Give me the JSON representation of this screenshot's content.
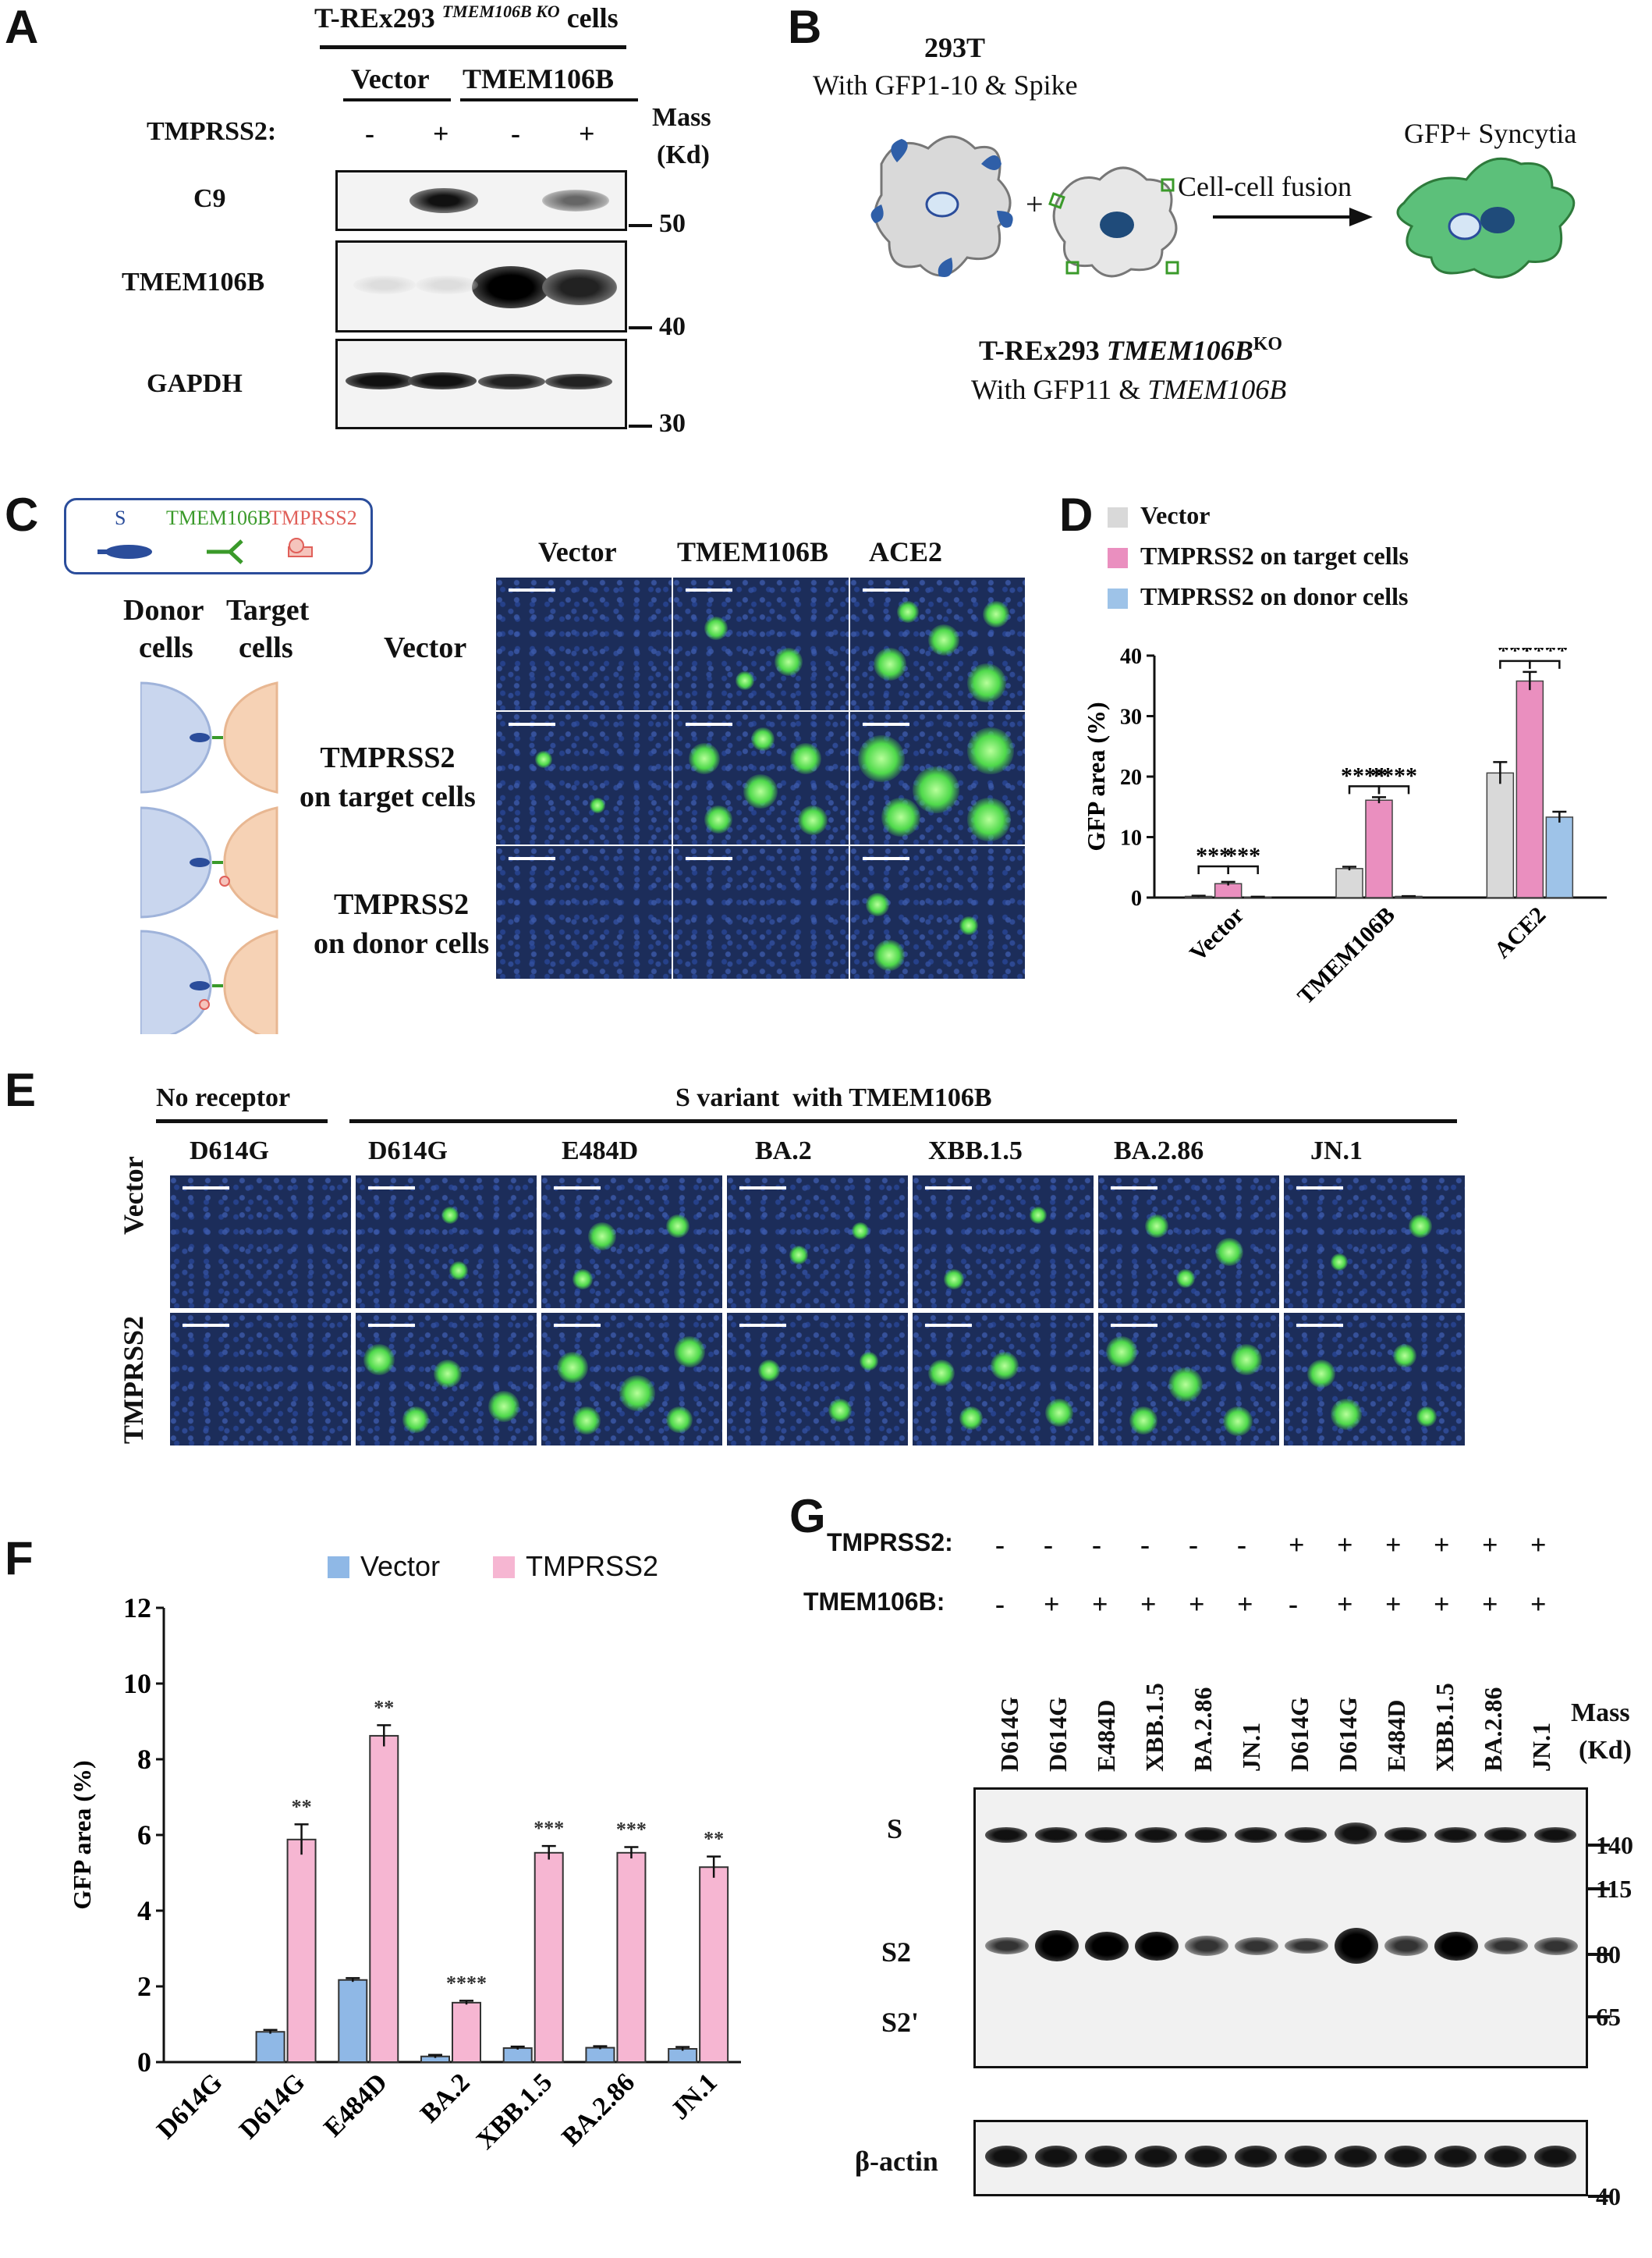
{
  "panel_letters": [
    "A",
    "B",
    "C",
    "D",
    "E",
    "F",
    "G"
  ],
  "A": {
    "cell_title": "T-REx293",
    "cell_title_sup": "TMEM106B KO",
    "cell_title_suffix": "cells",
    "groups": [
      "Vector",
      "TMEM106B"
    ],
    "tmprss2_label": "TMPRSS2:",
    "tmprss2_signs": [
      "-",
      "+",
      "-",
      "+"
    ],
    "mass_label": [
      "Mass",
      "(Kd)"
    ],
    "rows": [
      "C9",
      "TMEM106B",
      "GAPDH"
    ],
    "markers": [
      "50",
      "40",
      "30"
    ]
  },
  "B": {
    "donor_title": "293T",
    "donor_sub": "With GFP1-10 & Spike",
    "plus": "+",
    "arrow_label": "Cell-cell fusion",
    "result_label": "GFP+ Syncytia",
    "target_title": "T-REx293",
    "target_title_gene": "TMEM106B",
    "target_title_sup": "KO",
    "target_sub": "With GFP11 &",
    "target_sub_gene": "TMEM106B"
  },
  "C": {
    "legend": [
      {
        "label": "S",
        "color": "#2b4d9b"
      },
      {
        "label": "TMEM106B",
        "color": "#3a9a2a"
      },
      {
        "label": "TMPRSS2",
        "color": "#e0605a"
      }
    ],
    "donor_label": [
      "Donor",
      "cells"
    ],
    "target_label": [
      "Target",
      "cells"
    ],
    "col_headers": [
      "Vector",
      "TMEM106B",
      "ACE2"
    ],
    "row_headers": [
      "Vector",
      "TMPRSS2\non target cells",
      "TMPRSS2\non donor cells"
    ]
  },
  "D": {
    "chart_data": {
      "type": "bar",
      "ylabel": "GFP area (%)",
      "ylim": [
        0,
        40
      ],
      "yticks": [
        0,
        10,
        20,
        30,
        40
      ],
      "categories": [
        "Vector",
        "TMEM106B",
        "ACE2"
      ],
      "series": [
        {
          "name": "Vector",
          "color": "#d9d9d9",
          "values": [
            0.2,
            4.8,
            20.6
          ],
          "err": [
            0.1,
            0.3,
            1.8
          ]
        },
        {
          "name": "TMPRSS2 on target cells",
          "color": "#ea8fbf",
          "values": [
            2.3,
            16.1,
            35.8
          ],
          "err": [
            0.3,
            0.5,
            1.5
          ]
        },
        {
          "name": "TMPRSS2 on donor cells",
          "color": "#9ec3e8",
          "values": [
            0.1,
            0.2,
            13.3
          ],
          "err": [
            0.05,
            0.05,
            0.9
          ]
        }
      ],
      "significance": [
        {
          "category": "Vector",
          "pair": [
            0,
            1
          ],
          "label": "***"
        },
        {
          "category": "Vector",
          "pair": [
            1,
            2
          ],
          "label": "***"
        },
        {
          "category": "TMEM106B",
          "pair": [
            0,
            1
          ],
          "label": "****"
        },
        {
          "category": "TMEM106B",
          "pair": [
            1,
            2
          ],
          "label": "****"
        },
        {
          "category": "ACE2",
          "pair": [
            0,
            1
          ],
          "label": "***"
        },
        {
          "category": "ACE2",
          "pair": [
            1,
            2
          ],
          "label": "****"
        }
      ]
    }
  },
  "E": {
    "group1": "No receptor",
    "group2": "S variant  with TMEM106B",
    "col_headers": [
      "D614G",
      "D614G",
      "E484D",
      "BA.2",
      "XBB.1.5",
      "BA.2.86",
      "JN.1"
    ],
    "row_headers": [
      "Vector",
      "TMPRSS2"
    ]
  },
  "F": {
    "chart_data": {
      "type": "bar",
      "ylabel": "GFP area (%)",
      "ylim": [
        0,
        12
      ],
      "yticks": [
        0,
        2,
        4,
        6,
        8,
        10,
        12
      ],
      "categories": [
        "D614G",
        "D614G",
        "E484D",
        "BA.2",
        "XBB.1.5",
        "BA.2.86",
        "JN.1"
      ],
      "series": [
        {
          "name": "Vector",
          "color": "#8fb8e6",
          "values": [
            0,
            0.8,
            2.17,
            0.15,
            0.37,
            0.38,
            0.35
          ],
          "err": [
            0,
            0.05,
            0.05,
            0.04,
            0.04,
            0.04,
            0.05
          ]
        },
        {
          "name": "TMPRSS2",
          "color": "#f6b6d2",
          "values": [
            0,
            5.88,
            8.62,
            1.57,
            5.53,
            5.53,
            5.15
          ],
          "err": [
            0,
            0.4,
            0.28,
            0.05,
            0.18,
            0.15,
            0.28
          ]
        }
      ],
      "significance": [
        "",
        "**",
        "**",
        "****",
        "***",
        "***",
        "**"
      ],
      "legend_position": "top"
    }
  },
  "G": {
    "tmprss2_label": "TMPRSS2:",
    "tmprss2_signs": [
      "-",
      "-",
      "-",
      "-",
      "-",
      "-",
      "+",
      "+",
      "+",
      "+",
      "+",
      "+"
    ],
    "tmem_label": "TMEM106B:",
    "tmem_signs": [
      "-",
      "+",
      "+",
      "+",
      "+",
      "+",
      "-",
      "+",
      "+",
      "+",
      "+",
      "+"
    ],
    "lanes": [
      "D614G",
      "D614G",
      "E484D",
      "XBB.1.5",
      "BA.2.86",
      "JN.1",
      "D614G",
      "D614G",
      "E484D",
      "XBB.1.5",
      "BA.2.86",
      "JN.1"
    ],
    "mass_label": [
      "Mass",
      "(Kd)"
    ],
    "band_labels": [
      "S",
      "S2",
      "S2'"
    ],
    "markers": [
      "140",
      "115",
      "80",
      "65"
    ],
    "loading_label": "β-actin",
    "loading_marker": "40"
  }
}
